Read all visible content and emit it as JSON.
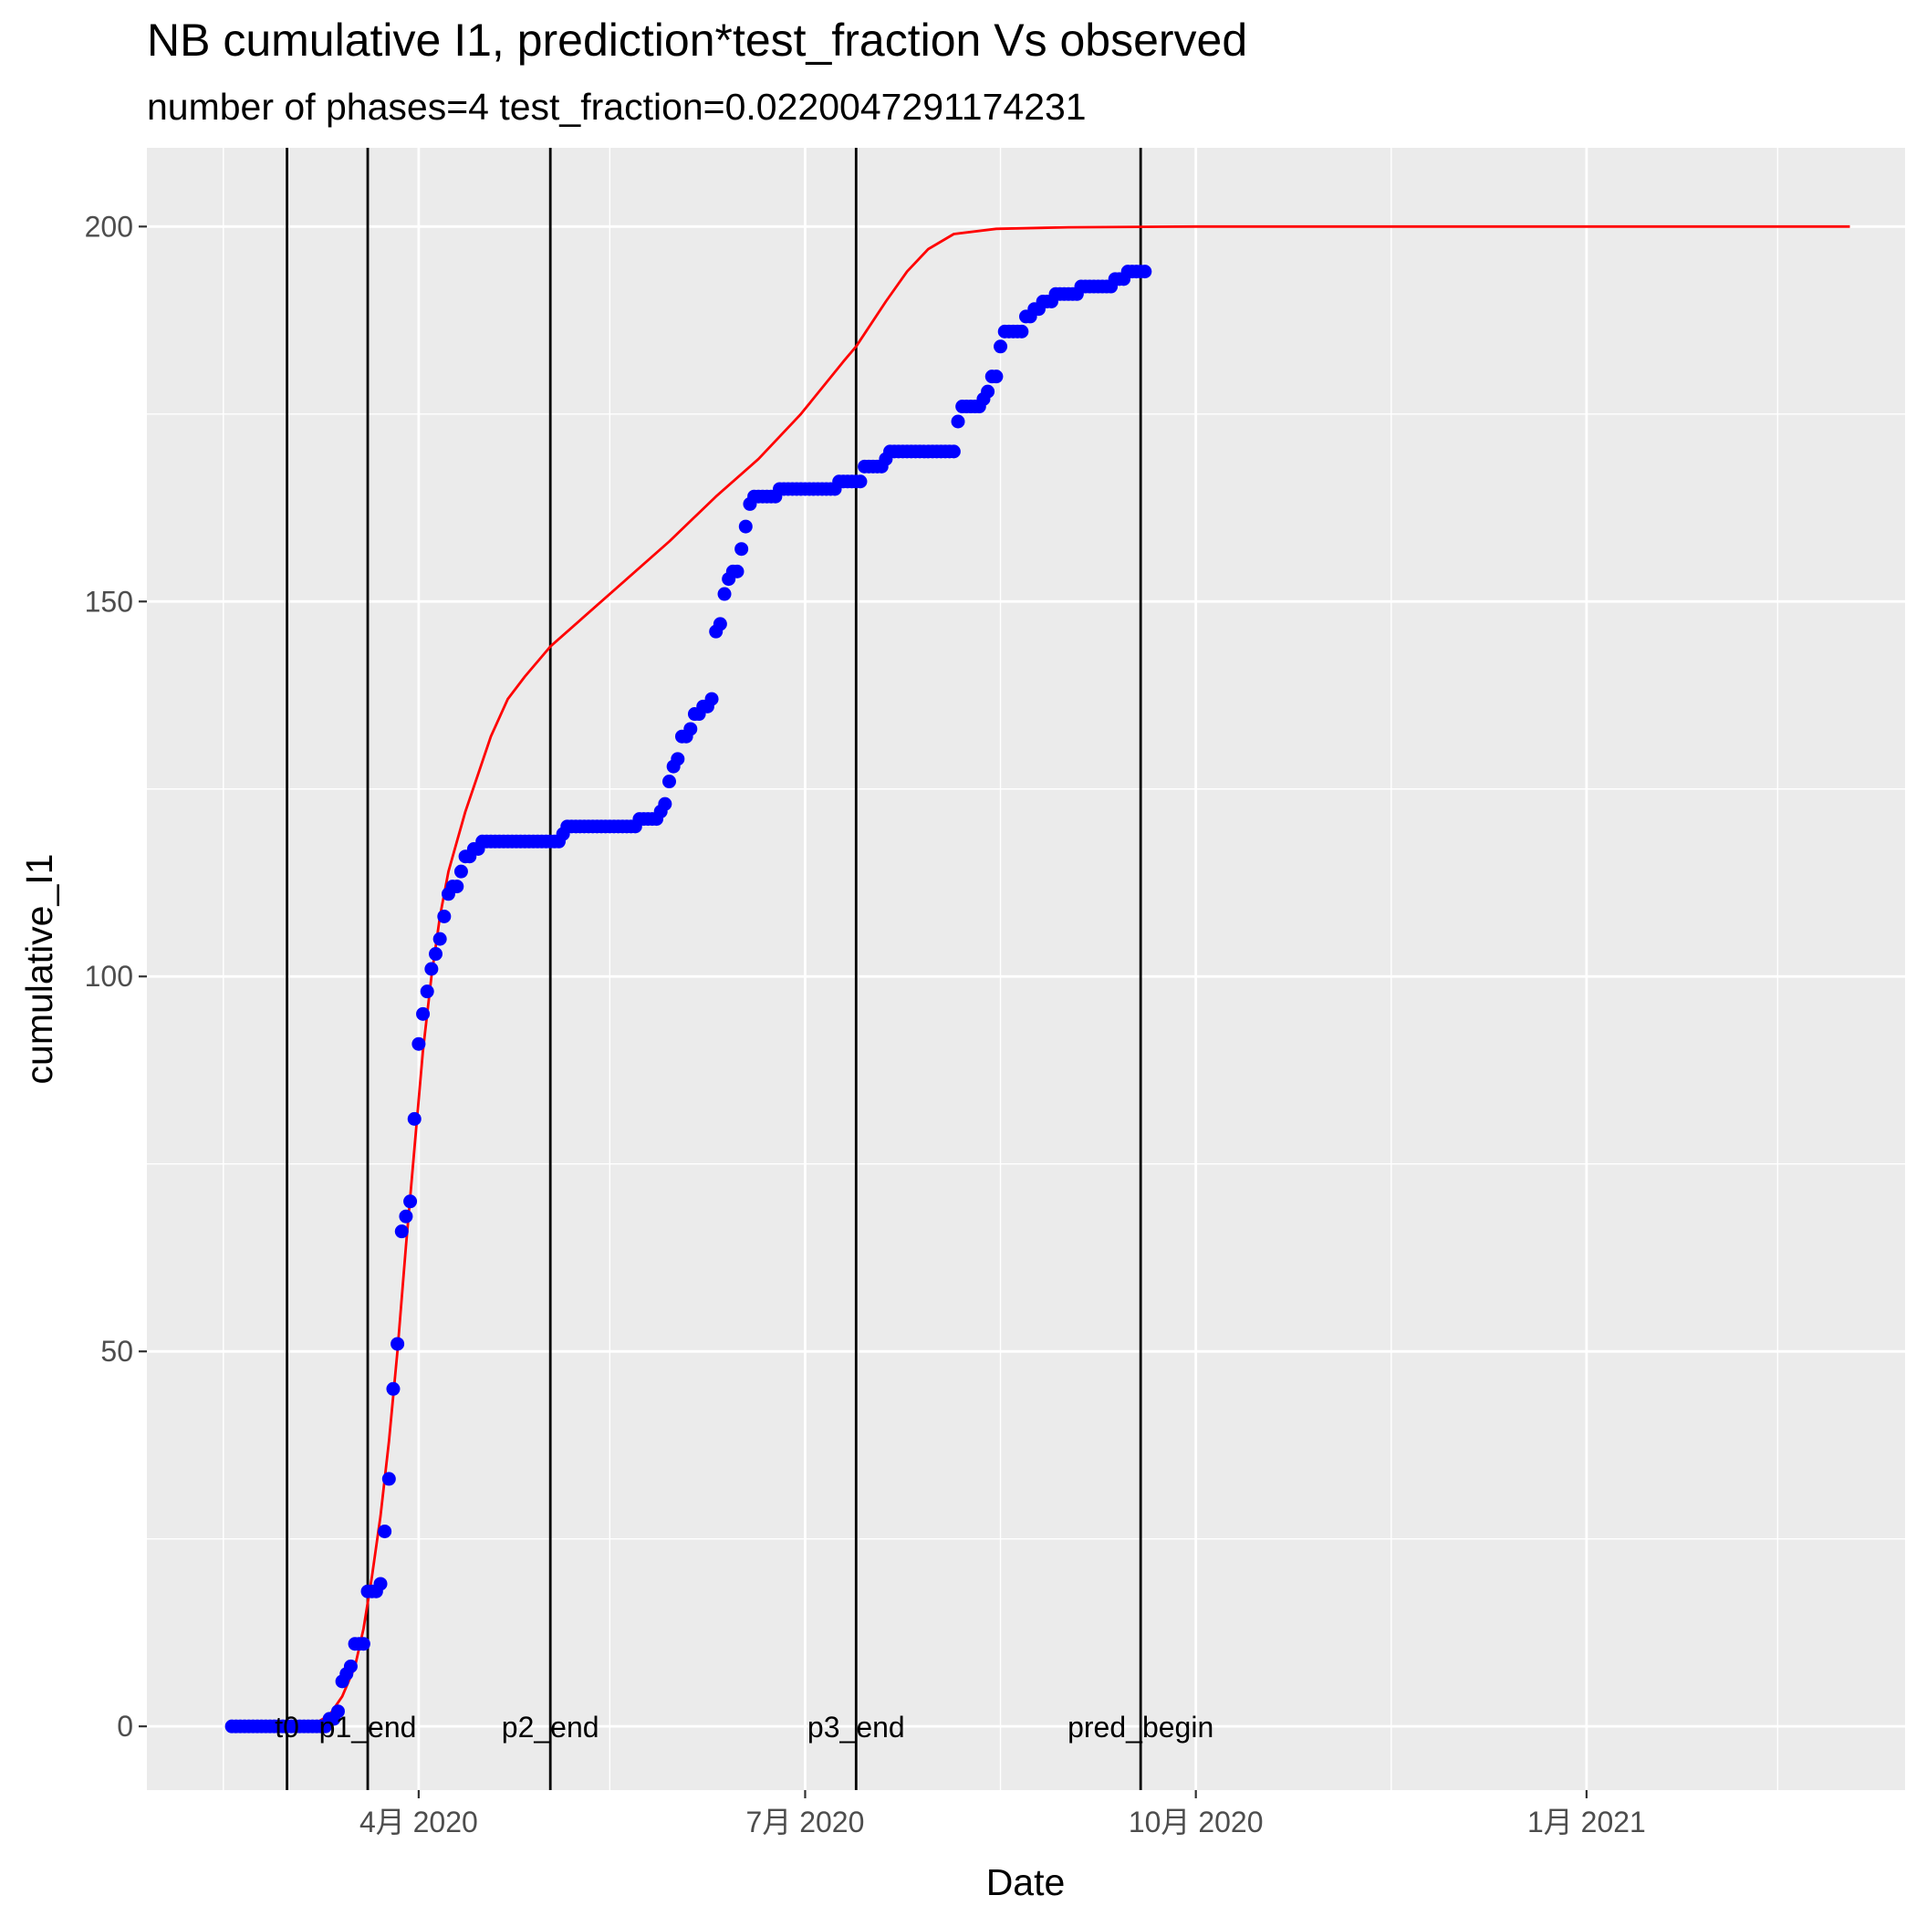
{
  "chart_data": {
    "type": "line",
    "title": "NB cumulative I1,  prediction*test_fraction Vs observed",
    "subtitle": "number of phases=4      test_fraction=0.0220047291174231",
    "xlabel": "Date",
    "ylabel": "cumulative_I1",
    "xlim": [
      "2020-01-28",
      "2021-03-17"
    ],
    "ylim": [
      -8.5,
      210.5
    ],
    "x_ticks": [
      {
        "date": "2020-04-01",
        "label": "4月 2020"
      },
      {
        "date": "2020-07-01",
        "label": "7月 2020"
      },
      {
        "date": "2020-10-01",
        "label": "10月 2020"
      },
      {
        "date": "2021-01-01",
        "label": "1月 2021"
      }
    ],
    "x_minor_ticks": [
      "2020-02-15",
      "2020-05-16",
      "2020-08-16",
      "2020-11-16",
      "2021-02-15"
    ],
    "y_ticks": [
      0,
      50,
      100,
      150,
      200
    ],
    "y_minor_ticks": [
      25,
      75,
      125,
      175
    ],
    "grid": true,
    "colors": {
      "panel": "#ebebeb",
      "grid": "#ffffff",
      "observed": "#0000ff",
      "prediction": "#ff0000",
      "vlines": "#000000"
    },
    "vlines": [
      {
        "date": "2020-03-01",
        "label": "t0"
      },
      {
        "date": "2020-03-20",
        "label": "p1_end"
      },
      {
        "date": "2020-05-02",
        "label": "p2_end"
      },
      {
        "date": "2020-07-13",
        "label": "p3_end"
      },
      {
        "date": "2020-09-18",
        "label": "pred_begin"
      }
    ],
    "series": [
      {
        "kind": "points",
        "points": [
          [
            "2020-02-17",
            0
          ],
          [
            "2020-02-18",
            0
          ],
          [
            "2020-02-19",
            0
          ],
          [
            "2020-02-20",
            0
          ],
          [
            "2020-02-21",
            0
          ],
          [
            "2020-02-22",
            0
          ],
          [
            "2020-02-23",
            0
          ],
          [
            "2020-02-24",
            0
          ],
          [
            "2020-02-25",
            0
          ],
          [
            "2020-02-26",
            0
          ],
          [
            "2020-02-27",
            0
          ],
          [
            "2020-02-28",
            0
          ],
          [
            "2020-02-29",
            0
          ],
          [
            "2020-03-01",
            0
          ],
          [
            "2020-03-02",
            0
          ],
          [
            "2020-03-03",
            0
          ],
          [
            "2020-03-04",
            0
          ],
          [
            "2020-03-05",
            0
          ],
          [
            "2020-03-06",
            0
          ],
          [
            "2020-03-07",
            0
          ],
          [
            "2020-03-08",
            0
          ],
          [
            "2020-03-09",
            0
          ],
          [
            "2020-03-10",
            0
          ],
          [
            "2020-03-11",
            1
          ],
          [
            "2020-03-12",
            1
          ],
          [
            "2020-03-13",
            2
          ],
          [
            "2020-03-14",
            6
          ],
          [
            "2020-03-15",
            7
          ],
          [
            "2020-03-16",
            8
          ],
          [
            "2020-03-17",
            11
          ],
          [
            "2020-03-18",
            11
          ],
          [
            "2020-03-19",
            11
          ],
          [
            "2020-03-20",
            18
          ],
          [
            "2020-03-21",
            18
          ],
          [
            "2020-03-22",
            18
          ],
          [
            "2020-03-23",
            19
          ],
          [
            "2020-03-24",
            26
          ],
          [
            "2020-03-25",
            33
          ],
          [
            "2020-03-26",
            45
          ],
          [
            "2020-03-27",
            51
          ],
          [
            "2020-03-28",
            66
          ],
          [
            "2020-03-29",
            68
          ],
          [
            "2020-03-30",
            70
          ],
          [
            "2020-03-31",
            81
          ],
          [
            "2020-04-01",
            91
          ],
          [
            "2020-04-02",
            95
          ],
          [
            "2020-04-03",
            98
          ],
          [
            "2020-04-04",
            101
          ],
          [
            "2020-04-05",
            103
          ],
          [
            "2020-04-06",
            105
          ],
          [
            "2020-04-07",
            108
          ],
          [
            "2020-04-08",
            111
          ],
          [
            "2020-04-09",
            112
          ],
          [
            "2020-04-10",
            112
          ],
          [
            "2020-04-11",
            114
          ],
          [
            "2020-04-12",
            116
          ],
          [
            "2020-04-13",
            116
          ],
          [
            "2020-04-14",
            117
          ],
          [
            "2020-04-15",
            117
          ],
          [
            "2020-04-16",
            118
          ],
          [
            "2020-04-17",
            118
          ],
          [
            "2020-04-18",
            118
          ],
          [
            "2020-04-19",
            118
          ],
          [
            "2020-04-20",
            118
          ],
          [
            "2020-04-21",
            118
          ],
          [
            "2020-04-22",
            118
          ],
          [
            "2020-04-23",
            118
          ],
          [
            "2020-04-24",
            118
          ],
          [
            "2020-04-25",
            118
          ],
          [
            "2020-04-26",
            118
          ],
          [
            "2020-04-27",
            118
          ],
          [
            "2020-04-28",
            118
          ],
          [
            "2020-04-29",
            118
          ],
          [
            "2020-04-30",
            118
          ],
          [
            "2020-05-01",
            118
          ],
          [
            "2020-05-02",
            118
          ],
          [
            "2020-05-03",
            118
          ],
          [
            "2020-05-04",
            118
          ],
          [
            "2020-05-05",
            119
          ],
          [
            "2020-05-06",
            120
          ],
          [
            "2020-05-07",
            120
          ],
          [
            "2020-05-08",
            120
          ],
          [
            "2020-05-09",
            120
          ],
          [
            "2020-05-10",
            120
          ],
          [
            "2020-05-11",
            120
          ],
          [
            "2020-05-12",
            120
          ],
          [
            "2020-05-13",
            120
          ],
          [
            "2020-05-14",
            120
          ],
          [
            "2020-05-15",
            120
          ],
          [
            "2020-05-16",
            120
          ],
          [
            "2020-05-17",
            120
          ],
          [
            "2020-05-18",
            120
          ],
          [
            "2020-05-19",
            120
          ],
          [
            "2020-05-20",
            120
          ],
          [
            "2020-05-21",
            120
          ],
          [
            "2020-05-22",
            120
          ],
          [
            "2020-05-23",
            121
          ],
          [
            "2020-05-24",
            121
          ],
          [
            "2020-05-25",
            121
          ],
          [
            "2020-05-26",
            121
          ],
          [
            "2020-05-27",
            121
          ],
          [
            "2020-05-28",
            122
          ],
          [
            "2020-05-29",
            123
          ],
          [
            "2020-05-30",
            126
          ],
          [
            "2020-05-31",
            128
          ],
          [
            "2020-06-01",
            129
          ],
          [
            "2020-06-02",
            132
          ],
          [
            "2020-06-03",
            132
          ],
          [
            "2020-06-04",
            133
          ],
          [
            "2020-06-05",
            135
          ],
          [
            "2020-06-06",
            135
          ],
          [
            "2020-06-07",
            136
          ],
          [
            "2020-06-08",
            136
          ],
          [
            "2020-06-09",
            137
          ],
          [
            "2020-06-10",
            146
          ],
          [
            "2020-06-11",
            147
          ],
          [
            "2020-06-12",
            151
          ],
          [
            "2020-06-13",
            153
          ],
          [
            "2020-06-14",
            154
          ],
          [
            "2020-06-15",
            154
          ],
          [
            "2020-06-16",
            157
          ],
          [
            "2020-06-17",
            160
          ],
          [
            "2020-06-18",
            163
          ],
          [
            "2020-06-19",
            164
          ],
          [
            "2020-06-20",
            164
          ],
          [
            "2020-06-21",
            164
          ],
          [
            "2020-06-22",
            164
          ],
          [
            "2020-06-23",
            164
          ],
          [
            "2020-06-24",
            164
          ],
          [
            "2020-06-25",
            165
          ],
          [
            "2020-06-26",
            165
          ],
          [
            "2020-06-27",
            165
          ],
          [
            "2020-06-28",
            165
          ],
          [
            "2020-06-29",
            165
          ],
          [
            "2020-06-30",
            165
          ],
          [
            "2020-07-01",
            165
          ],
          [
            "2020-07-02",
            165
          ],
          [
            "2020-07-03",
            165
          ],
          [
            "2020-07-04",
            165
          ],
          [
            "2020-07-05",
            165
          ],
          [
            "2020-07-06",
            165
          ],
          [
            "2020-07-07",
            165
          ],
          [
            "2020-07-08",
            165
          ],
          [
            "2020-07-09",
            166
          ],
          [
            "2020-07-10",
            166
          ],
          [
            "2020-07-11",
            166
          ],
          [
            "2020-07-12",
            166
          ],
          [
            "2020-07-13",
            166
          ],
          [
            "2020-07-14",
            166
          ],
          [
            "2020-07-15",
            168
          ],
          [
            "2020-07-16",
            168
          ],
          [
            "2020-07-17",
            168
          ],
          [
            "2020-07-18",
            168
          ],
          [
            "2020-07-19",
            168
          ],
          [
            "2020-07-20",
            169
          ],
          [
            "2020-07-21",
            170
          ],
          [
            "2020-07-22",
            170
          ],
          [
            "2020-07-23",
            170
          ],
          [
            "2020-07-24",
            170
          ],
          [
            "2020-07-25",
            170
          ],
          [
            "2020-07-26",
            170
          ],
          [
            "2020-07-27",
            170
          ],
          [
            "2020-07-28",
            170
          ],
          [
            "2020-07-29",
            170
          ],
          [
            "2020-07-30",
            170
          ],
          [
            "2020-07-31",
            170
          ],
          [
            "2020-08-01",
            170
          ],
          [
            "2020-08-02",
            170
          ],
          [
            "2020-08-03",
            170
          ],
          [
            "2020-08-04",
            170
          ],
          [
            "2020-08-05",
            170
          ],
          [
            "2020-08-06",
            174
          ],
          [
            "2020-08-07",
            176
          ],
          [
            "2020-08-08",
            176
          ],
          [
            "2020-08-09",
            176
          ],
          [
            "2020-08-10",
            176
          ],
          [
            "2020-08-11",
            176
          ],
          [
            "2020-08-12",
            177
          ],
          [
            "2020-08-13",
            178
          ],
          [
            "2020-08-14",
            180
          ],
          [
            "2020-08-15",
            180
          ],
          [
            "2020-08-16",
            184
          ],
          [
            "2020-08-17",
            186
          ],
          [
            "2020-08-18",
            186
          ],
          [
            "2020-08-19",
            186
          ],
          [
            "2020-08-20",
            186
          ],
          [
            "2020-08-21",
            186
          ],
          [
            "2020-08-22",
            188
          ],
          [
            "2020-08-23",
            188
          ],
          [
            "2020-08-24",
            189
          ],
          [
            "2020-08-25",
            189
          ],
          [
            "2020-08-26",
            190
          ],
          [
            "2020-08-27",
            190
          ],
          [
            "2020-08-28",
            190
          ],
          [
            "2020-08-29",
            191
          ],
          [
            "2020-08-30",
            191
          ],
          [
            "2020-08-31",
            191
          ],
          [
            "2020-09-01",
            191
          ],
          [
            "2020-09-02",
            191
          ],
          [
            "2020-09-03",
            191
          ],
          [
            "2020-09-04",
            192
          ],
          [
            "2020-09-05",
            192
          ],
          [
            "2020-09-06",
            192
          ],
          [
            "2020-09-07",
            192
          ],
          [
            "2020-09-08",
            192
          ],
          [
            "2020-09-09",
            192
          ],
          [
            "2020-09-10",
            192
          ],
          [
            "2020-09-11",
            192
          ],
          [
            "2020-09-12",
            193
          ],
          [
            "2020-09-13",
            193
          ],
          [
            "2020-09-14",
            193
          ],
          [
            "2020-09-15",
            194
          ],
          [
            "2020-09-16",
            194
          ],
          [
            "2020-09-17",
            194
          ],
          [
            "2020-09-18",
            194
          ],
          [
            "2020-09-19",
            194
          ]
        ]
      },
      {
        "kind": "line",
        "points": [
          [
            "2020-02-17",
            0
          ],
          [
            "2020-03-01",
            0
          ],
          [
            "2020-03-05",
            0
          ],
          [
            "2020-03-08",
            0.5
          ],
          [
            "2020-03-11",
            1.5
          ],
          [
            "2020-03-14",
            4
          ],
          [
            "2020-03-17",
            8
          ],
          [
            "2020-03-19",
            13
          ],
          [
            "2020-03-21",
            20
          ],
          [
            "2020-03-23",
            28
          ],
          [
            "2020-03-25",
            38
          ],
          [
            "2020-03-27",
            50
          ],
          [
            "2020-03-29",
            64
          ],
          [
            "2020-03-31",
            77
          ],
          [
            "2020-04-02",
            90
          ],
          [
            "2020-04-04",
            100
          ],
          [
            "2020-04-06",
            108
          ],
          [
            "2020-04-08",
            114
          ],
          [
            "2020-04-10",
            118
          ],
          [
            "2020-04-12",
            122
          ],
          [
            "2020-04-15",
            127
          ],
          [
            "2020-04-18",
            132
          ],
          [
            "2020-04-22",
            137
          ],
          [
            "2020-04-26",
            140
          ],
          [
            "2020-05-02",
            144
          ],
          [
            "2020-05-10",
            148
          ],
          [
            "2020-05-20",
            153
          ],
          [
            "2020-05-30",
            158
          ],
          [
            "2020-06-10",
            164
          ],
          [
            "2020-06-20",
            169
          ],
          [
            "2020-06-30",
            175
          ],
          [
            "2020-07-10",
            182
          ],
          [
            "2020-07-13",
            184
          ],
          [
            "2020-07-20",
            190
          ],
          [
            "2020-07-25",
            194
          ],
          [
            "2020-07-30",
            197
          ],
          [
            "2020-08-05",
            199
          ],
          [
            "2020-08-15",
            199.7
          ],
          [
            "2020-09-01",
            199.9
          ],
          [
            "2020-10-01",
            200
          ],
          [
            "2021-03-04",
            200
          ]
        ]
      }
    ]
  }
}
